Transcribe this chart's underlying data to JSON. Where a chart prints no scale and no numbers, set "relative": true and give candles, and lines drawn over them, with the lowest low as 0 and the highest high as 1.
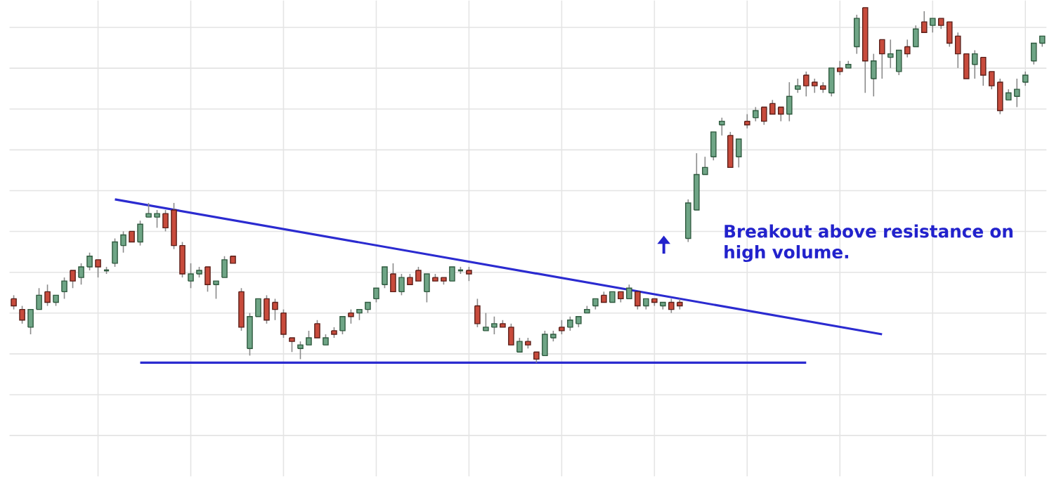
{
  "chart_data": {
    "type": "candlestick",
    "relative": true,
    "tick_labels": false,
    "grid": true,
    "categories": [
      null,
      null,
      null,
      null,
      null,
      null,
      null,
      null,
      null,
      null,
      null,
      null,
      null,
      null,
      null,
      null,
      null,
      null,
      null,
      null,
      null,
      null,
      null,
      null,
      null,
      null,
      null,
      null,
      null,
      null,
      null,
      null,
      null,
      null,
      null,
      null,
      null,
      null,
      null,
      null,
      null,
      null,
      null,
      null,
      null,
      null,
      null,
      null,
      null,
      null,
      null,
      null,
      null,
      null,
      null,
      null,
      null,
      null,
      null,
      null,
      null,
      null,
      null,
      null,
      null,
      null,
      null,
      null,
      null,
      null,
      null,
      null,
      null,
      null,
      null,
      null,
      null,
      null,
      null,
      null,
      null,
      null,
      null,
      null,
      null,
      null,
      null,
      null,
      null,
      null,
      null,
      null,
      null,
      null,
      null,
      null,
      null,
      null,
      null,
      null,
      null,
      null,
      null,
      null,
      null,
      null,
      null,
      null,
      null,
      null,
      null,
      null,
      null,
      null,
      null,
      null,
      null,
      null,
      null,
      null,
      null,
      null,
      null
    ],
    "ohlc": [
      [
        0.18,
        0.19,
        0.15,
        0.16
      ],
      [
        0.15,
        0.16,
        0.11,
        0.12
      ],
      [
        0.1,
        0.15,
        0.08,
        0.15
      ],
      [
        0.15,
        0.21,
        0.15,
        0.19
      ],
      [
        0.2,
        0.22,
        0.16,
        0.17
      ],
      [
        0.17,
        0.19,
        0.16,
        0.19
      ],
      [
        0.2,
        0.24,
        0.18,
        0.23
      ],
      [
        0.26,
        0.26,
        0.21,
        0.23
      ],
      [
        0.24,
        0.28,
        0.22,
        0.27
      ],
      [
        0.27,
        0.31,
        0.26,
        0.3
      ],
      [
        0.29,
        0.29,
        0.24,
        0.27
      ],
      [
        0.26,
        0.27,
        0.25,
        0.26
      ],
      [
        0.28,
        0.35,
        0.27,
        0.34
      ],
      [
        0.33,
        0.37,
        0.31,
        0.36
      ],
      [
        0.37,
        0.37,
        0.34,
        0.34
      ],
      [
        0.34,
        0.4,
        0.33,
        0.39
      ],
      [
        0.41,
        0.45,
        0.41,
        0.42
      ],
      [
        0.41,
        0.43,
        0.38,
        0.42
      ],
      [
        0.42,
        0.43,
        0.37,
        0.38
      ],
      [
        0.43,
        0.45,
        0.32,
        0.33
      ],
      [
        0.33,
        0.34,
        0.24,
        0.25
      ],
      [
        0.23,
        0.28,
        0.21,
        0.25
      ],
      [
        0.25,
        0.27,
        0.24,
        0.26
      ],
      [
        0.27,
        0.27,
        0.2,
        0.22
      ],
      [
        0.22,
        0.23,
        0.18,
        0.23
      ],
      [
        0.24,
        0.3,
        0.24,
        0.29
      ],
      [
        0.3,
        0.3,
        0.28,
        0.28
      ],
      [
        0.2,
        0.21,
        0.09,
        0.1
      ],
      [
        0.04,
        0.14,
        0.02,
        0.13
      ],
      [
        0.13,
        0.18,
        0.13,
        0.18
      ],
      [
        0.18,
        0.19,
        0.11,
        0.12
      ],
      [
        0.17,
        0.18,
        0.12,
        0.15
      ],
      [
        0.14,
        0.15,
        0.07,
        0.08
      ],
      [
        0.07,
        0.07,
        0.03,
        0.06
      ],
      [
        0.04,
        0.06,
        0.01,
        0.05
      ],
      [
        0.05,
        0.09,
        0.05,
        0.07
      ],
      [
        0.11,
        0.12,
        0.07,
        0.07
      ],
      [
        0.05,
        0.08,
        0.05,
        0.07
      ],
      [
        0.09,
        0.1,
        0.07,
        0.08
      ],
      [
        0.09,
        0.13,
        0.08,
        0.13
      ],
      [
        0.14,
        0.15,
        0.11,
        0.13
      ],
      [
        0.14,
        0.15,
        0.12,
        0.15
      ],
      [
        0.15,
        0.17,
        0.14,
        0.17
      ],
      [
        0.18,
        0.21,
        0.17,
        0.21
      ],
      [
        0.22,
        0.27,
        0.21,
        0.27
      ],
      [
        0.25,
        0.28,
        0.2,
        0.2
      ],
      [
        0.2,
        0.25,
        0.19,
        0.24
      ],
      [
        0.24,
        0.25,
        0.22,
        0.22
      ],
      [
        0.26,
        0.27,
        0.23,
        0.23
      ],
      [
        0.2,
        0.25,
        0.17,
        0.25
      ],
      [
        0.24,
        0.25,
        0.23,
        0.23
      ],
      [
        0.24,
        0.24,
        0.22,
        0.23
      ],
      [
        0.23,
        0.27,
        0.23,
        0.27
      ],
      [
        0.26,
        0.27,
        0.25,
        0.26
      ],
      [
        0.26,
        0.27,
        0.23,
        0.25
      ],
      [
        0.16,
        0.18,
        0.1,
        0.11
      ],
      [
        0.09,
        0.14,
        0.09,
        0.1
      ],
      [
        0.1,
        0.13,
        0.08,
        0.11
      ],
      [
        0.11,
        0.12,
        0.1,
        0.1
      ],
      [
        0.1,
        0.11,
        0.05,
        0.05
      ],
      [
        0.03,
        0.07,
        0.03,
        0.06
      ],
      [
        0.06,
        0.07,
        0.04,
        0.05
      ],
      [
        0.03,
        0.03,
        0.0,
        0.01
      ],
      [
        0.02,
        0.09,
        0.02,
        0.08
      ],
      [
        0.07,
        0.09,
        0.06,
        0.08
      ],
      [
        0.1,
        0.12,
        0.08,
        0.09
      ],
      [
        0.1,
        0.13,
        0.09,
        0.12
      ],
      [
        0.11,
        0.13,
        0.1,
        0.13
      ],
      [
        0.14,
        0.16,
        0.14,
        0.15
      ],
      [
        0.16,
        0.18,
        0.15,
        0.18
      ],
      [
        0.19,
        0.2,
        0.17,
        0.17
      ],
      [
        0.17,
        0.2,
        0.17,
        0.2
      ],
      [
        0.2,
        0.2,
        0.17,
        0.18
      ],
      [
        0.18,
        0.22,
        0.18,
        0.21
      ],
      [
        0.2,
        0.2,
        0.15,
        0.16
      ],
      [
        0.16,
        0.18,
        0.15,
        0.18
      ],
      [
        0.18,
        0.18,
        0.16,
        0.17
      ],
      [
        0.16,
        0.17,
        0.15,
        0.17
      ],
      [
        0.17,
        0.18,
        0.14,
        0.15
      ],
      [
        0.17,
        0.18,
        0.15,
        0.16
      ],
      [
        0.35,
        0.46,
        0.34,
        0.45
      ],
      [
        0.43,
        0.59,
        0.43,
        0.53
      ],
      [
        0.53,
        0.58,
        0.53,
        0.55
      ],
      [
        0.58,
        0.65,
        0.57,
        0.65
      ],
      [
        0.67,
        0.69,
        0.64,
        0.68
      ],
      [
        0.64,
        0.65,
        0.55,
        0.55
      ],
      [
        0.58,
        0.63,
        0.55,
        0.63
      ],
      [
        0.68,
        0.7,
        0.66,
        0.67
      ],
      [
        0.69,
        0.72,
        0.68,
        0.71
      ],
      [
        0.72,
        0.72,
        0.67,
        0.68
      ],
      [
        0.73,
        0.74,
        0.7,
        0.7
      ],
      [
        0.72,
        0.72,
        0.68,
        0.7
      ],
      [
        0.7,
        0.79,
        0.68,
        0.75
      ],
      [
        0.77,
        0.8,
        0.76,
        0.78
      ],
      [
        0.81,
        0.82,
        0.75,
        0.78
      ],
      [
        0.79,
        0.8,
        0.76,
        0.78
      ],
      [
        0.78,
        0.79,
        0.76,
        0.77
      ],
      [
        0.76,
        0.83,
        0.75,
        0.83
      ],
      [
        0.83,
        0.85,
        0.81,
        0.82
      ],
      [
        0.83,
        0.85,
        0.83,
        0.84
      ],
      [
        0.89,
        0.98,
        0.87,
        0.97
      ],
      [
        1.0,
        1.0,
        0.76,
        0.85
      ],
      [
        0.8,
        0.87,
        0.75,
        0.85
      ],
      [
        0.91,
        0.91,
        0.8,
        0.87
      ],
      [
        0.86,
        0.91,
        0.83,
        0.87
      ],
      [
        0.82,
        0.88,
        0.81,
        0.88
      ],
      [
        0.89,
        0.91,
        0.86,
        0.87
      ],
      [
        0.89,
        0.95,
        0.89,
        0.94
      ],
      [
        0.96,
        0.99,
        0.93,
        0.93
      ],
      [
        0.95,
        0.97,
        0.93,
        0.97
      ],
      [
        0.97,
        0.97,
        0.94,
        0.95
      ],
      [
        0.96,
        0.96,
        0.89,
        0.9
      ],
      [
        0.92,
        0.93,
        0.83,
        0.87
      ],
      [
        0.87,
        0.87,
        0.8,
        0.8
      ],
      [
        0.84,
        0.88,
        0.8,
        0.87
      ],
      [
        0.86,
        0.86,
        0.78,
        0.81
      ],
      [
        0.82,
        0.82,
        0.77,
        0.78
      ],
      [
        0.79,
        0.8,
        0.7,
        0.71
      ],
      [
        0.74,
        0.77,
        0.74,
        0.76
      ],
      [
        0.75,
        0.8,
        0.72,
        0.77
      ],
      [
        0.79,
        0.82,
        0.78,
        0.81
      ],
      [
        0.85,
        0.9,
        0.84,
        0.9
      ],
      [
        0.9,
        0.92,
        0.89,
        0.92
      ]
    ],
    "series": [
      {
        "type": "line",
        "color": "#2b2bd0",
        "values": [
          null,
          null,
          null,
          null,
          null,
          null,
          null,
          null,
          null,
          null,
          null,
          null,
          0.46,
          null,
          null,
          null,
          null,
          null,
          null,
          null,
          null,
          null,
          null,
          null,
          null,
          null,
          null,
          null,
          null,
          null,
          null,
          null,
          null,
          null,
          null,
          null,
          null,
          null,
          null,
          null,
          null,
          null,
          null,
          null,
          null,
          null,
          null,
          null,
          null,
          null,
          null,
          null,
          null,
          null,
          null,
          null,
          null,
          null,
          null,
          null,
          null,
          null,
          null,
          null,
          null,
          null,
          null,
          null,
          null,
          null,
          null,
          null,
          null,
          null,
          null,
          null,
          null,
          null,
          null,
          null,
          null,
          null,
          null,
          null,
          null,
          null,
          null,
          null,
          null,
          null,
          null,
          null,
          null,
          null,
          null,
          null,
          null,
          null,
          null,
          null,
          null,
          null,
          null,
          0.08,
          null,
          null,
          null,
          null,
          null,
          null,
          null,
          null,
          null,
          null,
          null,
          null,
          null,
          null,
          null,
          null,
          null,
          null,
          null
        ]
      },
      {
        "type": "line",
        "color": "#2b2bd0",
        "values": [
          null,
          null,
          null,
          null,
          null,
          null,
          null,
          null,
          null,
          null,
          null,
          null,
          null,
          null,
          null,
          0.0,
          null,
          null,
          null,
          null,
          null,
          null,
          null,
          null,
          null,
          null,
          null,
          null,
          null,
          null,
          null,
          null,
          null,
          null,
          null,
          null,
          null,
          null,
          null,
          null,
          null,
          null,
          null,
          null,
          null,
          null,
          null,
          null,
          null,
          null,
          null,
          null,
          null,
          null,
          null,
          null,
          null,
          null,
          null,
          null,
          null,
          null,
          null,
          null,
          null,
          null,
          null,
          null,
          null,
          null,
          null,
          null,
          null,
          null,
          null,
          null,
          null,
          null,
          null,
          null,
          null,
          null,
          null,
          null,
          null,
          null,
          null,
          null,
          null,
          null,
          null,
          null,
          null,
          null,
          0.0,
          null,
          null,
          null,
          null,
          null,
          null,
          null,
          null,
          null,
          null,
          null,
          null,
          null,
          null,
          null,
          null,
          null,
          null,
          null,
          null,
          null,
          null,
          null,
          null,
          null,
          null,
          null,
          null
        ]
      }
    ],
    "annotations": [
      "Breakout above resistance on high volume."
    ]
  }
}
